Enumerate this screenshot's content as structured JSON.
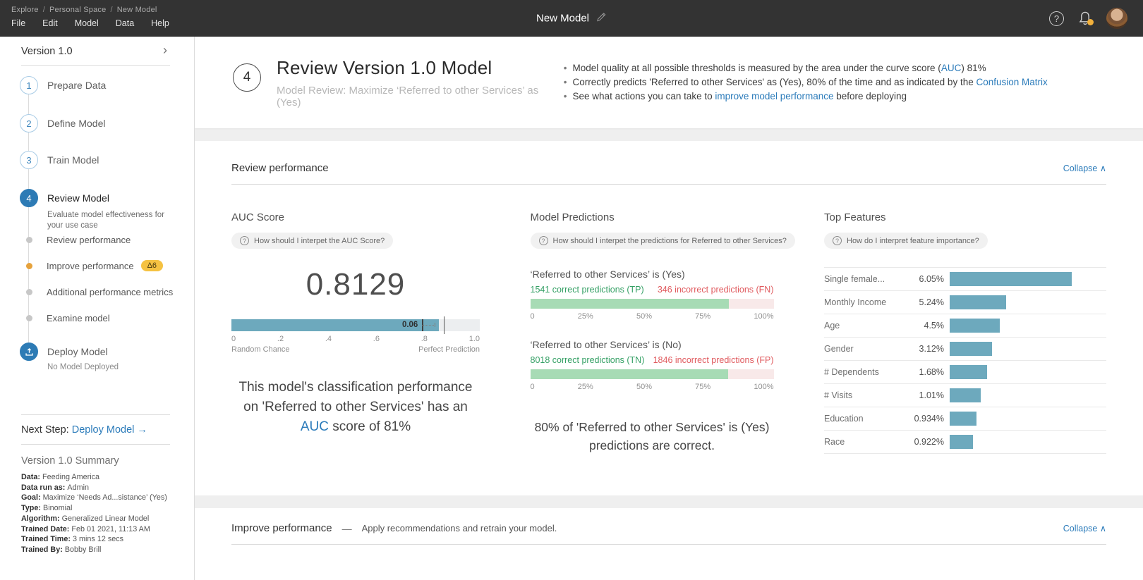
{
  "icons": {
    "question": "?",
    "chevron_right": "›",
    "collapse": "∧",
    "bullet": "•",
    "crumb_sep": "/"
  },
  "topbar": {
    "breadcrumb": [
      "Explore",
      "Personal Space",
      "New Model"
    ],
    "menus": [
      "File",
      "Edit",
      "Model",
      "Data",
      "Help"
    ],
    "title": "New Model"
  },
  "sidebar": {
    "version_label": "Version 1.0",
    "steps": [
      {
        "num": "1",
        "label": "Prepare Data"
      },
      {
        "num": "2",
        "label": "Define Model"
      },
      {
        "num": "3",
        "label": "Train Model"
      },
      {
        "num": "4",
        "label": "Review Model",
        "desc": "Evaluate model effectiveness for your use case"
      }
    ],
    "substeps": [
      {
        "label": "Review performance"
      },
      {
        "label": "Improve performance",
        "badge": "Δ6"
      },
      {
        "label": "Additional performance metrics"
      },
      {
        "label": "Examine model"
      }
    ],
    "deploy": {
      "label": "Deploy Model",
      "desc": "No Model Deployed"
    },
    "next_step": {
      "prefix": "Next Step:",
      "link": "Deploy Model →"
    },
    "summary": {
      "title": "Version 1.0 Summary",
      "rows": [
        {
          "k": "Data:",
          "v": "Feeding America"
        },
        {
          "k": "Data run as:",
          "v": "Admin"
        },
        {
          "k": "Goal:",
          "v": "Maximize ‘Needs Ad...sistance’ (Yes)"
        },
        {
          "k": "Type:",
          "v": "Binomial"
        },
        {
          "k": "Algorithm:",
          "v": "Generalized Linear Model"
        },
        {
          "k": "Trained Date:",
          "v": "Feb 01 2021, 11:13 AM"
        },
        {
          "k": "Trained Time:",
          "v": "3 mins 12 secs"
        },
        {
          "k": "Trained By:",
          "v": "Bobby Brill"
        }
      ]
    }
  },
  "header": {
    "step_num": "4",
    "title": "Review Version 1.0 Model",
    "subtitle": "Model Review: Maximize ‘Referred to other Services’ as (Yes)",
    "bullets": [
      {
        "pre": "Model quality at all possible thresholds is measured by the area under the curve score (",
        "link": "AUC",
        "post": ") 81%"
      },
      {
        "pre": "Correctly predicts 'Referred to other Services' as (Yes), 80% of the time and as indicated by the ",
        "link": "Confusion Matrix",
        "post": ""
      },
      {
        "pre": "See what actions you can take to ",
        "link": "improve model performance",
        "post": " before deploying"
      }
    ]
  },
  "review": {
    "title": "Review performance",
    "collapse_label": "Collapse",
    "auc": {
      "title": "AUC Score",
      "help": "How should I interpet the AUC Score?",
      "score": "0.8129",
      "gauge": {
        "label": "0.06",
        "fill_pct": 83.5,
        "marker_pct": 76.8,
        "dotted_end_pct": 82.2,
        "cursor_pct": 85.5
      },
      "ticks": [
        "0",
        ".2",
        ".4",
        ".6",
        ".8",
        "1.0"
      ],
      "left_end": "Random Chance",
      "right_end": "Perfect Prediction",
      "para": {
        "pre": "This model's classification performance on 'Referred to other Services' has an ",
        "link": "AUC",
        "post": " score of 81%"
      }
    },
    "predictions": {
      "title": "Model Predictions",
      "help": "How should I interpet the predictions for Referred to other Services?",
      "groups": [
        {
          "heading": "‘Referred to other Services’ is (Yes)",
          "correct": "1541 correct predictions (TP)",
          "incorrect": "346 incorrect predictions (FN)",
          "pct": 81.7
        },
        {
          "heading": "‘Referred to other Services’ is (No)",
          "correct": "8018 correct predictions (TN)",
          "incorrect": "1846 incorrect predictions (FP)",
          "pct": 81.3
        }
      ],
      "axis": [
        "0",
        "25%",
        "50%",
        "75%",
        "100%"
      ],
      "note": "80% of 'Referred to other Services' is (Yes) predictions are correct."
    },
    "features": {
      "title": "Top Features",
      "help": "How do I interpret feature importance?",
      "rows": [
        {
          "name": "Single female...",
          "value": "6.05%",
          "bar_pct": 78
        },
        {
          "name": "Monthly Income",
          "value": "5.24%",
          "bar_pct": 36
        },
        {
          "name": "Age",
          "value": "4.5%",
          "bar_pct": 32
        },
        {
          "name": "Gender",
          "value": "3.12%",
          "bar_pct": 27
        },
        {
          "name": "# Dependents",
          "value": "1.68%",
          "bar_pct": 24
        },
        {
          "name": "# Visits",
          "value": "1.01%",
          "bar_pct": 20
        },
        {
          "name": "Education",
          "value": "0.934%",
          "bar_pct": 17
        },
        {
          "name": "Race",
          "value": "0.922%",
          "bar_pct": 15
        }
      ]
    }
  },
  "improve": {
    "title": "Improve performance",
    "dash": "—",
    "subtitle": "Apply recommendations and retrain your model.",
    "collapse_label": "Collapse"
  },
  "chart_data": [
    {
      "type": "bar",
      "title": "AUC Score",
      "value": 0.8129,
      "interval_label": 0.06,
      "xlim": [
        0,
        1
      ],
      "tick_labels": [
        "0",
        ".2",
        ".4",
        ".6",
        ".8",
        "1.0"
      ],
      "annotations": [
        "Random Chance (left end)",
        "Perfect Prediction (right end)"
      ]
    },
    {
      "type": "bar",
      "title": "Model Predictions",
      "categories": [
        "‘Referred to other Services’ is (Yes)",
        "‘Referred to other Services’ is (No)"
      ],
      "series": [
        {
          "name": "correct predictions",
          "values": [
            1541,
            8018
          ]
        },
        {
          "name": "incorrect predictions",
          "values": [
            346,
            1846
          ]
        }
      ],
      "tick_labels": [
        "0",
        "25%",
        "50%",
        "75%",
        "100%"
      ],
      "note": "80% of 'Referred to other Services' is (Yes) predictions are correct."
    },
    {
      "type": "bar",
      "title": "Top Features",
      "categories": [
        "Single female...",
        "Monthly Income",
        "Age",
        "Gender",
        "# Dependents",
        "# Visits",
        "Education",
        "Race"
      ],
      "values": [
        6.05,
        5.24,
        4.5,
        3.12,
        1.68,
        1.01,
        0.934,
        0.922
      ],
      "unit": "%"
    }
  ]
}
